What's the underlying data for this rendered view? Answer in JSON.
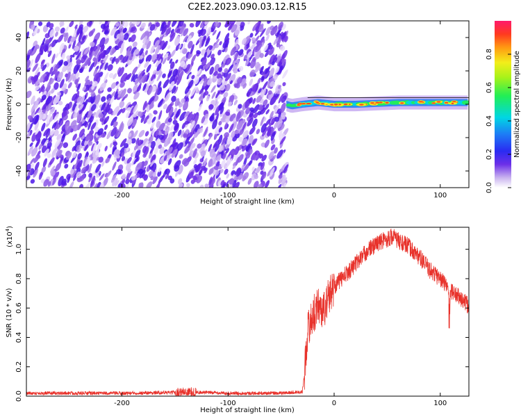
{
  "title": "C2E2.2023.090.03.12.R15",
  "chart_data": [
    {
      "type": "heatmap",
      "xlabel": "Height of straight line (km)",
      "ylabel": "Frequency (Hz)",
      "xlim": [
        -290,
        127
      ],
      "ylim": [
        -50,
        50
      ],
      "xticks": [
        -200,
        -100,
        0,
        100
      ],
      "yticks": [
        -40,
        -20,
        0,
        20,
        40
      ],
      "noise_region_x": [
        -290,
        -45
      ],
      "signal_band": {
        "x_start": -45,
        "x_end": 127,
        "center_freq_points": [
          [
            -45,
            0
          ],
          [
            -40,
            -1
          ],
          [
            -30,
            0
          ],
          [
            -15,
            1
          ],
          [
            0,
            0
          ],
          [
            20,
            0
          ],
          [
            60,
            1
          ],
          [
            100,
            1
          ],
          [
            127,
            1
          ]
        ],
        "halfwidth_hz": 3
      },
      "colorbar": {
        "label": "Normalized spectral amplitude",
        "range": [
          0.0,
          1.0
        ],
        "ticks": [
          0.0,
          0.2,
          0.4,
          0.6,
          0.8
        ]
      }
    },
    {
      "type": "line",
      "xlabel": "Height of straight line (km)",
      "ylabel": "SNR (10 * v/v)",
      "y_multiplier": "(x10",
      "y_multiplier_exp": "4",
      "y_multiplier_close": ")",
      "xlim": [
        -290,
        127
      ],
      "ylim": [
        0,
        1.15
      ],
      "xticks": [
        -200,
        -100,
        0,
        100
      ],
      "yticks": [
        0.0,
        0.2,
        0.4,
        0.6,
        0.8,
        1.0
      ],
      "color": "#e8322b",
      "x": [
        -290,
        -250,
        -200,
        -150,
        -140,
        -100,
        -50,
        -30,
        -28,
        -25,
        -20,
        -15,
        -10,
        -5,
        0,
        10,
        20,
        30,
        40,
        50,
        55,
        60,
        70,
        80,
        90,
        100,
        110,
        120,
        127
      ],
      "y": [
        0.02,
        0.02,
        0.02,
        0.025,
        0.03,
        0.02,
        0.02,
        0.03,
        0.15,
        0.45,
        0.55,
        0.62,
        0.58,
        0.68,
        0.75,
        0.82,
        0.9,
        0.98,
        1.04,
        1.07,
        1.09,
        1.06,
        1.02,
        0.95,
        0.86,
        0.8,
        0.72,
        0.66,
        0.61
      ]
    }
  ]
}
